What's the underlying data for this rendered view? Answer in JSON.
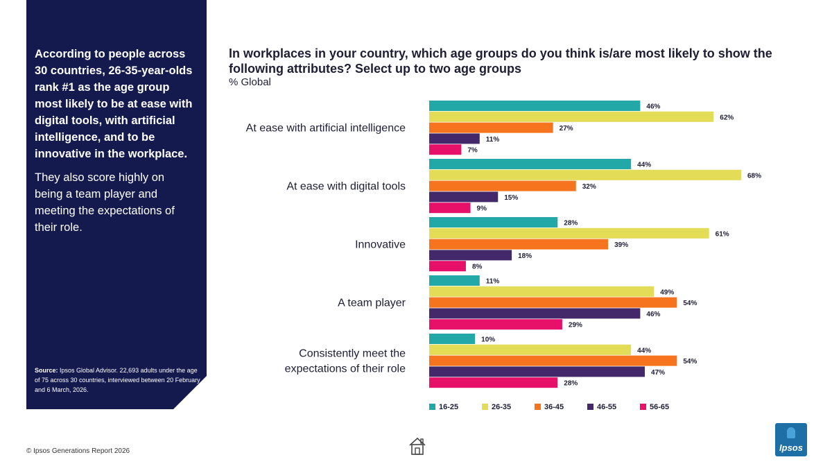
{
  "side": {
    "headline": "According to people across 30 countries, 26-35-year-olds rank #1 as the age group most likely to be at ease with digital tools, with artificial intelligence, and to be innovative in the workplace.",
    "body": "They also score highly on being a team player and meeting the expectations of their role.",
    "source_label": "Source:",
    "source_text": " Ipsos Global Advisor. 22,693 adults under the age of 75 across 30 countries, interviewed between 20 February and 6 March, 2026."
  },
  "footer": {
    "copyright": "© Ipsos Generations Report 2026"
  },
  "logo": {
    "text": "Ipsos"
  },
  "icons": {
    "home": "home-icon",
    "logo": "ipsos-logo"
  },
  "chart_data": {
    "type": "bar",
    "orientation": "horizontal",
    "title": "In workplaces in your country, which age groups do you think is/are most likely to show the following attributes? Select up to two age groups",
    "subtitle": "% Global",
    "categories": [
      [
        "At ease with artificial intelligence"
      ],
      [
        "At ease with digital tools"
      ],
      [
        "Innovative"
      ],
      [
        "A team player"
      ],
      [
        "Consistently meet the",
        "expectations of their role"
      ]
    ],
    "series": [
      {
        "name": "16-25",
        "color": "#23a8a8",
        "values": [
          46,
          44,
          28,
          11,
          10
        ]
      },
      {
        "name": "26-35",
        "color": "#e2dc57",
        "values": [
          62,
          68,
          61,
          49,
          44
        ]
      },
      {
        "name": "36-45",
        "color": "#f5741d",
        "values": [
          27,
          32,
          39,
          54,
          54
        ]
      },
      {
        "name": "46-55",
        "color": "#43286a",
        "values": [
          11,
          15,
          18,
          46,
          47
        ]
      },
      {
        "name": "56-65",
        "color": "#e8116a",
        "values": [
          7,
          9,
          8,
          29,
          28
        ]
      }
    ],
    "value_suffix": "%",
    "xlim": [
      0,
      68
    ],
    "grid": false,
    "legend_position": "bottom"
  }
}
